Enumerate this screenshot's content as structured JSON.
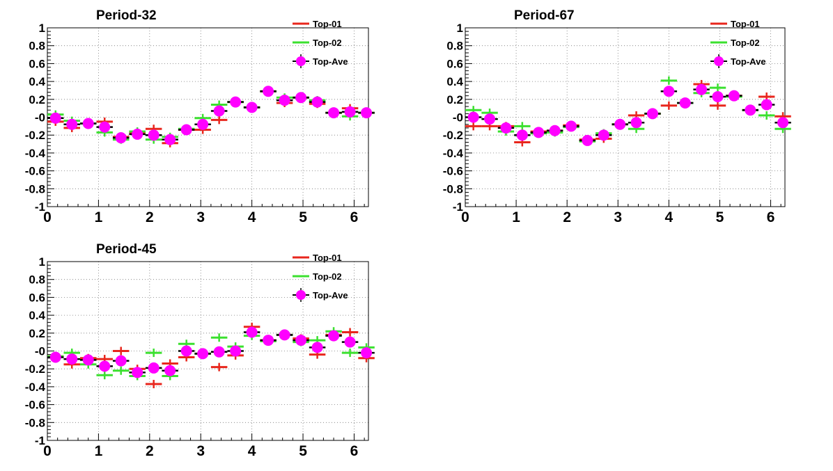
{
  "chart_data": [
    {
      "type": "scatter",
      "title": "Period-32",
      "xlim": [
        0,
        6.28
      ],
      "ylim": [
        -1,
        1
      ],
      "x_ticks": [
        "0",
        "1",
        "2",
        "3",
        "4",
        "5",
        "6"
      ],
      "y_ticks": [
        "-1",
        "-0.8",
        "-0.6",
        "-0.4",
        "-0.2",
        "-0",
        "0.2",
        "0.4",
        "0.6",
        "0.8",
        "1"
      ],
      "grid": true,
      "legend": "top-right",
      "x": [
        0.16,
        0.48,
        0.8,
        1.12,
        1.44,
        1.76,
        2.08,
        2.4,
        2.72,
        3.04,
        3.36,
        3.68,
        4.0,
        4.32,
        4.64,
        4.96,
        5.28,
        5.6,
        5.92,
        6.24
      ],
      "series": [
        {
          "name": "Top-01",
          "color": "#e8261c",
          "marker": "cross",
          "values": [
            -0.05,
            -0.12,
            -0.07,
            -0.05,
            -0.22,
            -0.17,
            -0.13,
            -0.29,
            -0.14,
            -0.14,
            -0.03,
            0.17,
            0.11,
            0.29,
            0.16,
            0.22,
            0.15,
            0.05,
            0.1,
            0.05
          ]
        },
        {
          "name": "Top-02",
          "color": "#3be02f",
          "marker": "cross",
          "values": [
            0.03,
            -0.04,
            -0.07,
            -0.17,
            -0.25,
            -0.16,
            -0.25,
            -0.22,
            -0.13,
            -0.01,
            0.14,
            0.17,
            0.11,
            0.29,
            0.22,
            0.22,
            0.19,
            0.05,
            0.01,
            0.05
          ]
        },
        {
          "name": "Top-Ave",
          "color": "#ff00ff",
          "marker": "circle",
          "values": [
            -0.01,
            -0.08,
            -0.07,
            -0.11,
            -0.23,
            -0.19,
            -0.2,
            -0.25,
            -0.14,
            -0.08,
            0.07,
            0.17,
            0.11,
            0.29,
            0.19,
            0.22,
            0.17,
            0.05,
            0.06,
            0.05
          ]
        }
      ]
    },
    {
      "type": "scatter",
      "title": "Period-67",
      "xlim": [
        0,
        6.28
      ],
      "ylim": [
        -1,
        1
      ],
      "x_ticks": [
        "0",
        "1",
        "2",
        "3",
        "4",
        "5",
        "6"
      ],
      "y_ticks": [
        "-1",
        "-0.8",
        "-0.6",
        "-0.4",
        "-0.2",
        "-0",
        "0.2",
        "0.4",
        "0.6",
        "0.8",
        "1"
      ],
      "grid": true,
      "legend": "top-right",
      "x": [
        0.16,
        0.48,
        0.8,
        1.12,
        1.44,
        1.76,
        2.08,
        2.4,
        2.72,
        3.04,
        3.36,
        3.68,
        4.0,
        4.32,
        4.64,
        4.96,
        5.28,
        5.6,
        5.92,
        6.24
      ],
      "series": [
        {
          "name": "Top-01",
          "color": "#e8261c",
          "marker": "cross",
          "values": [
            -0.1,
            -0.1,
            -0.1,
            -0.28,
            -0.16,
            -0.15,
            -0.09,
            -0.25,
            -0.24,
            -0.08,
            0.02,
            0.04,
            0.13,
            0.16,
            0.37,
            0.13,
            0.24,
            0.08,
            0.23,
            0.01
          ]
        },
        {
          "name": "Top-02",
          "color": "#3be02f",
          "marker": "cross",
          "values": [
            0.08,
            0.05,
            -0.16,
            -0.1,
            -0.18,
            -0.17,
            -0.11,
            -0.27,
            -0.18,
            -0.08,
            -0.13,
            0.04,
            0.41,
            0.16,
            0.27,
            0.33,
            0.23,
            0.08,
            0.02,
            -0.13
          ]
        },
        {
          "name": "Top-Ave",
          "color": "#ff00ff",
          "marker": "circle",
          "values": [
            0.0,
            -0.02,
            -0.12,
            -0.2,
            -0.17,
            -0.15,
            -0.1,
            -0.26,
            -0.2,
            -0.08,
            -0.06,
            0.04,
            0.29,
            0.16,
            0.31,
            0.23,
            0.24,
            0.08,
            0.14,
            -0.06
          ]
        }
      ]
    },
    {
      "type": "scatter",
      "title": "Period-45",
      "xlim": [
        0,
        6.28
      ],
      "ylim": [
        -1,
        1
      ],
      "x_ticks": [
        "0",
        "1",
        "2",
        "3",
        "4",
        "5",
        "6"
      ],
      "y_ticks": [
        "-1",
        "-0.8",
        "-0.6",
        "-0.4",
        "-0.2",
        "-0",
        "0.2",
        "0.4",
        "0.6",
        "0.8",
        "1"
      ],
      "grid": true,
      "legend": "top-right",
      "x": [
        0.16,
        0.48,
        0.8,
        1.12,
        1.44,
        1.76,
        2.08,
        2.4,
        2.72,
        3.04,
        3.36,
        3.68,
        4.0,
        4.32,
        4.64,
        4.96,
        5.28,
        5.6,
        5.92,
        6.24
      ],
      "series": [
        {
          "name": "Top-01",
          "color": "#e8261c",
          "marker": "cross",
          "values": [
            -0.06,
            -0.15,
            -0.08,
            -0.09,
            0.0,
            -0.2,
            -0.37,
            -0.14,
            -0.07,
            -0.03,
            -0.18,
            -0.05,
            0.27,
            0.12,
            0.18,
            0.14,
            -0.04,
            0.18,
            0.21,
            -0.08
          ]
        },
        {
          "name": "Top-02",
          "color": "#3be02f",
          "marker": "cross",
          "values": [
            -0.06,
            -0.02,
            -0.15,
            -0.27,
            -0.22,
            -0.28,
            -0.02,
            -0.28,
            0.08,
            -0.03,
            0.15,
            0.05,
            0.17,
            0.11,
            0.18,
            0.1,
            0.12,
            0.22,
            -0.02,
            0.04
          ]
        },
        {
          "name": "Top-Ave",
          "color": "#ff00ff",
          "marker": "circle",
          "values": [
            -0.07,
            -0.09,
            -0.1,
            -0.17,
            -0.11,
            -0.24,
            -0.19,
            -0.22,
            0.0,
            -0.03,
            -0.01,
            0.0,
            0.21,
            0.12,
            0.18,
            0.12,
            0.04,
            0.17,
            0.1,
            -0.02
          ]
        }
      ]
    }
  ]
}
